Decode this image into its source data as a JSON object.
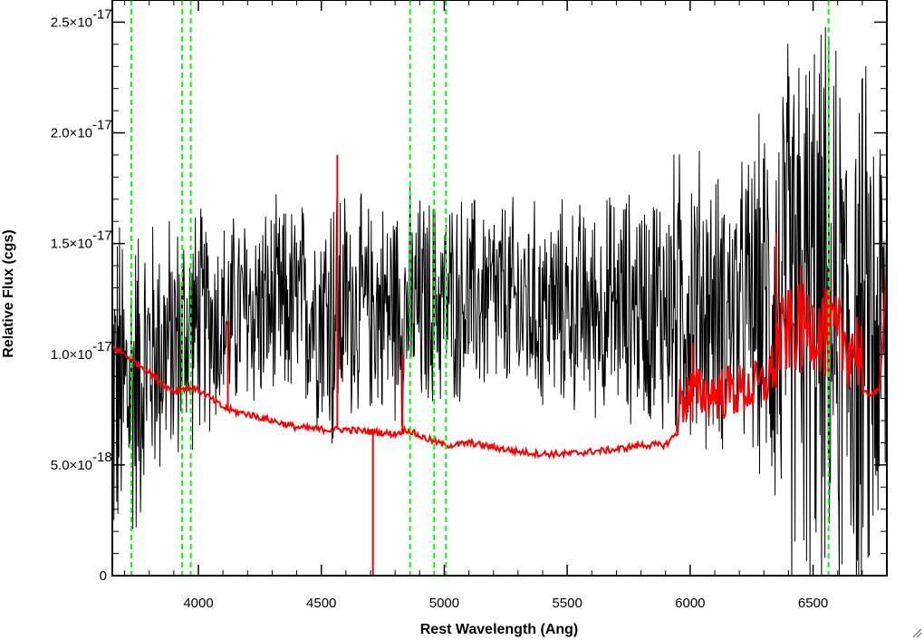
{
  "chart_data": {
    "type": "line",
    "title": "",
    "xlabel": "Rest Wavelength (Ang)",
    "ylabel": "Relative Flux (cgs)",
    "xlim": [
      3650,
      6800
    ],
    "ylim": [
      0,
      2.6e-17
    ],
    "x_ticks": [
      {
        "value": 4000,
        "label": "4000"
      },
      {
        "value": 4500,
        "label": "4500"
      },
      {
        "value": 5000,
        "label": "5000"
      },
      {
        "value": 5500,
        "label": "5500"
      },
      {
        "value": 6000,
        "label": "6000"
      },
      {
        "value": 6500,
        "label": "6500"
      }
    ],
    "y_ticks": [
      {
        "value": 0,
        "mantissa": "0",
        "exponent": ""
      },
      {
        "value": 5e-18,
        "mantissa": "5.0×10",
        "exponent": "-18"
      },
      {
        "value": 1e-17,
        "mantissa": "1.0×10",
        "exponent": "-17"
      },
      {
        "value": 1.5e-17,
        "mantissa": "1.5×10",
        "exponent": "-17"
      },
      {
        "value": 2e-17,
        "mantissa": "2.0×10",
        "exponent": "-17"
      },
      {
        "value": 2.5e-17,
        "mantissa": "2.5×10",
        "exponent": "-17"
      }
    ],
    "grid": false,
    "legend": "none",
    "series": [
      {
        "color": "#000000",
        "style": "noisy spectrum",
        "envelope_x": [
          3650,
          3700,
          3750,
          3800,
          3900,
          4000,
          4100,
          4200,
          4300,
          4400,
          4500,
          4550,
          4600,
          4700,
          4800,
          4900,
          5000,
          5100,
          5200,
          5300,
          5400,
          5500,
          5600,
          5700,
          5800,
          5900,
          6000,
          6100,
          6200,
          6300,
          6400,
          6500,
          6600,
          6700,
          6800
        ],
        "envelope_mean": [
          8.5e-18,
          8e-18,
          9e-18,
          1e-17,
          1.05e-17,
          1.15e-17,
          1.15e-17,
          1.2e-17,
          1.2e-17,
          1.22e-17,
          1.2e-17,
          1.2e-17,
          1.22e-17,
          1.2e-17,
          1.22e-17,
          1.2e-17,
          1.25e-17,
          1.25e-17,
          1.25e-17,
          1.22e-17,
          1.2e-17,
          1.22e-17,
          1.2e-17,
          1.22e-17,
          1.22e-17,
          1.22e-17,
          1.25e-17,
          1.2e-17,
          1.2e-17,
          1.25e-17,
          1.2e-17,
          1.2e-17,
          1.1e-17,
          1.05e-17,
          1.1e-17
        ],
        "envelope_halfwidth": [
          8e-18,
          8e-18,
          7e-18,
          6e-18,
          5.5e-18,
          5e-18,
          4.5e-18,
          4.5e-18,
          4.5e-18,
          4.5e-18,
          5e-18,
          7e-18,
          5e-18,
          4.5e-18,
          5e-18,
          5e-18,
          4.5e-18,
          4.5e-18,
          4.5e-18,
          4.5e-18,
          4.5e-18,
          4.5e-18,
          4.5e-18,
          5e-18,
          5e-18,
          6e-18,
          7e-18,
          6e-18,
          6e-18,
          8e-18,
          1.2e-17,
          1.3e-17,
          1.2e-17,
          1.2e-17,
          1e-17
        ]
      },
      {
        "color": "#ff0000",
        "style": "error spectrum",
        "x": [
          3650,
          3700,
          3750,
          3800,
          3850,
          3900,
          3950,
          4000,
          4050,
          4100,
          4150,
          4200,
          4300,
          4400,
          4500,
          4600,
          4700,
          4800,
          4850,
          4900,
          4950,
          5000,
          5050,
          5100,
          5200,
          5300,
          5400,
          5500,
          5600,
          5700,
          5800,
          5900,
          5950,
          6000,
          6100,
          6200,
          6300,
          6350,
          6400,
          6500,
          6600,
          6700,
          6770,
          6800
        ],
        "y": [
          1.03e-17,
          1e-17,
          9.6e-18,
          9.2e-18,
          8.7e-18,
          8.3e-18,
          8.5e-18,
          8.4e-18,
          8e-18,
          7.6e-18,
          7.4e-18,
          7.3e-18,
          7e-18,
          6.7e-18,
          6.6e-18,
          6.6e-18,
          6.5e-18,
          6.4e-18,
          6.6e-18,
          6.3e-18,
          6.1e-18,
          5.9e-18,
          5.9e-18,
          6e-18,
          5.8e-18,
          5.6e-18,
          5.5e-18,
          5.5e-18,
          5.6e-18,
          5.7e-18,
          5.9e-18,
          5.9e-18,
          6.5e-18,
          7e-18,
          7e-18,
          7.1e-18,
          7.3e-18,
          8.5e-18,
          9e-18,
          9.3e-18,
          8.7e-18,
          8.2e-18,
          8.3e-18,
          1.4e-17
        ],
        "spikes": [
          {
            "x": 4565,
            "y": 1.9e-17
          },
          {
            "x": 4710,
            "y": 0
          },
          {
            "x": 4830,
            "y": 1e-17
          },
          {
            "x": 4120,
            "y": 1.15e-17
          },
          {
            "x": 6350,
            "y": 1.55e-17
          },
          {
            "x": 6450,
            "y": 1.4e-17
          },
          {
            "x": 6550,
            "y": 1.3e-17
          },
          {
            "x": 6010,
            "y": 1.05e-17
          }
        ]
      }
    ],
    "reference_lines": {
      "color": "#00ff00",
      "style": "dashed",
      "x": [
        3727,
        3934,
        3969,
        4861,
        4959,
        5007,
        6563
      ]
    }
  }
}
